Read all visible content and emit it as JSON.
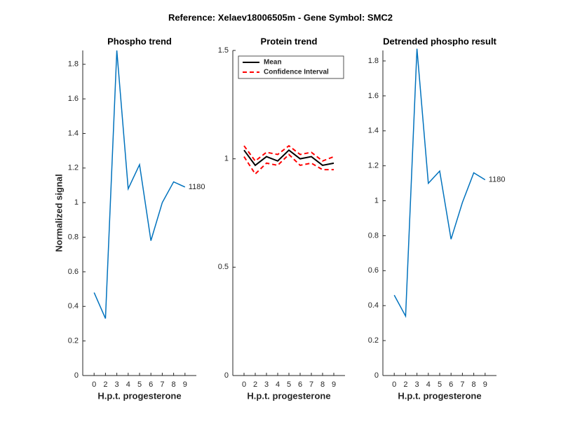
{
  "title": "Reference:  Xelaev18006505m - Gene Symbol:  SMC2",
  "chart_data": [
    {
      "type": "line",
      "title": "Phospho trend",
      "xlabel": "H.p.t. progesterone",
      "ylabel": "Normalized signal",
      "categories": [
        "0",
        "2",
        "3",
        "4",
        "5",
        "6",
        "7",
        "8",
        "9"
      ],
      "series": [
        {
          "name": "1180",
          "color": "#0072bd",
          "values": [
            0.48,
            0.33,
            1.88,
            1.08,
            1.22,
            0.78,
            1.0,
            1.12,
            1.09
          ]
        }
      ],
      "annotation": "1180",
      "ylim": [
        0,
        1.88
      ],
      "yticks": [
        0,
        0.2,
        0.4,
        0.6,
        0.8,
        1,
        1.2,
        1.4,
        1.6,
        1.8
      ]
    },
    {
      "type": "line",
      "title": "Protein trend",
      "xlabel": "H.p.t. progesterone",
      "categories": [
        "0",
        "2",
        "3",
        "4",
        "5",
        "6",
        "7",
        "8",
        "9"
      ],
      "series": [
        {
          "name": "Mean",
          "color": "#000000",
          "values": [
            1.04,
            0.97,
            1.01,
            0.99,
            1.04,
            1.0,
            1.01,
            0.97,
            0.98
          ]
        },
        {
          "name": "Confidence Interval",
          "color": "#ff0000",
          "dashed": true,
          "values": [
            1.06,
            0.99,
            1.03,
            1.02,
            1.06,
            1.02,
            1.03,
            0.99,
            1.01
          ],
          "lower": [
            1.01,
            0.93,
            0.98,
            0.97,
            1.02,
            0.97,
            0.98,
            0.95,
            0.95
          ]
        }
      ],
      "legend": "upper-left",
      "ylim": [
        0,
        1.5
      ],
      "yticks": [
        0,
        0.5,
        1,
        1.5
      ]
    },
    {
      "type": "line",
      "title": "Detrended phospho result",
      "xlabel": "H.p.t. progesterone",
      "categories": [
        "0",
        "2",
        "3",
        "4",
        "5",
        "6",
        "7",
        "8",
        "9"
      ],
      "series": [
        {
          "name": "1180",
          "color": "#0072bd",
          "values": [
            0.46,
            0.34,
            1.87,
            1.1,
            1.17,
            0.78,
            0.99,
            1.16,
            1.12
          ]
        }
      ],
      "annotation": "1180",
      "ylim": [
        0,
        1.86
      ],
      "yticks": [
        0,
        0.2,
        0.4,
        0.6,
        0.8,
        1,
        1.2,
        1.4,
        1.6,
        1.8
      ]
    }
  ]
}
